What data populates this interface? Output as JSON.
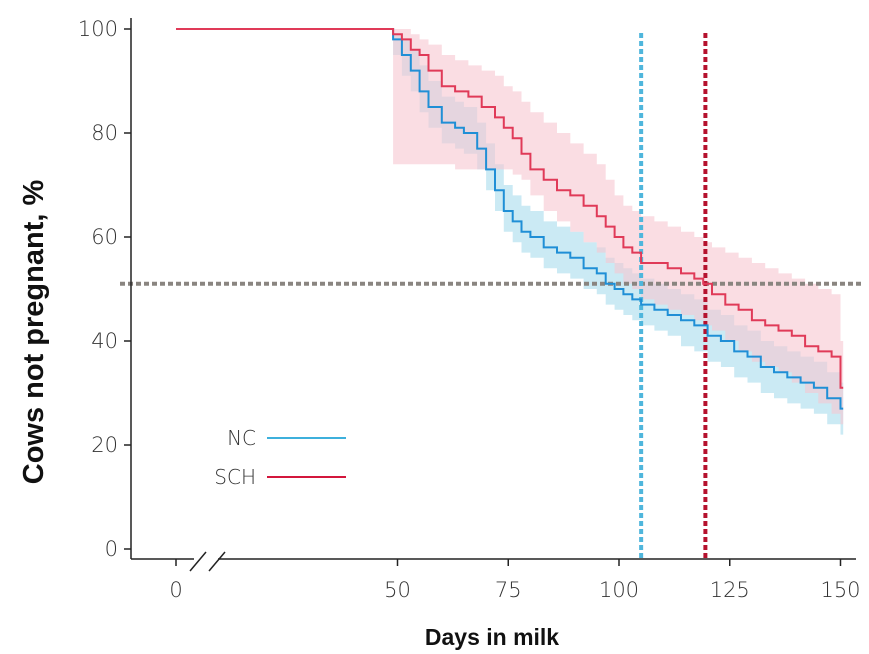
{
  "chart_data": {
    "type": "line",
    "title": "",
    "xlabel": "Days in milk",
    "ylabel": "Cows not pregnant, %",
    "xlim": [
      0,
      152
    ],
    "ylim": [
      0,
      100
    ],
    "x_axis_break": true,
    "x_ticks": [
      {
        "value": 0,
        "label": "0"
      },
      {
        "value": 50,
        "label": "50"
      },
      {
        "value": 75,
        "label": "75"
      },
      {
        "value": 100,
        "label": "100"
      },
      {
        "value": 125,
        "label": "125"
      },
      {
        "value": 150,
        "label": "150"
      }
    ],
    "y_ticks": [
      {
        "value": 0,
        "label": "0"
      },
      {
        "value": 20,
        "label": "20"
      },
      {
        "value": 40,
        "label": "40"
      },
      {
        "value": 60,
        "label": "60"
      },
      {
        "value": 80,
        "label": "80"
      },
      {
        "value": 100,
        "label": "100"
      }
    ],
    "reference_lines": [
      {
        "orientation": "horizontal",
        "value": 51,
        "color": "#8a8580",
        "style": "dotted"
      },
      {
        "orientation": "vertical",
        "value": 105,
        "color": "#4fb6dc",
        "style": "dotted"
      },
      {
        "orientation": "vertical",
        "value": 119.5,
        "color": "#b5122e",
        "style": "dotted"
      }
    ],
    "legend": {
      "position": "lower-left",
      "entries": [
        {
          "label": "NC",
          "color": "#3db0dc"
        },
        {
          "label": "SCH",
          "color": "#d3163c"
        }
      ]
    },
    "series": [
      {
        "name": "NC",
        "line_color": "#1f8fd6",
        "band_color": "#a9dcec",
        "step": true,
        "x": [
          0,
          47,
          49,
          51,
          53,
          55,
          57,
          60,
          63,
          65,
          68,
          70,
          72,
          74,
          76,
          78,
          80,
          83,
          86,
          89,
          92,
          95,
          97,
          99,
          101,
          103,
          105,
          108,
          111,
          114,
          117,
          120,
          123,
          126,
          129,
          132,
          135,
          138,
          141,
          144,
          147,
          150
        ],
        "y": [
          100,
          100,
          98,
          95,
          92,
          88,
          85,
          82,
          81,
          80,
          77,
          73,
          69,
          65,
          63,
          61,
          60,
          58,
          57,
          56,
          54,
          53,
          51,
          50,
          49,
          48,
          47,
          46,
          45,
          44,
          43,
          41,
          40,
          38,
          37,
          35,
          34,
          33,
          32,
          31,
          29,
          27
        ],
        "lower": [
          100,
          100,
          95,
          91,
          88,
          84,
          81,
          78,
          77,
          76,
          73,
          69,
          65,
          61,
          59,
          57,
          56,
          54,
          53,
          52,
          50,
          49,
          47,
          46,
          45,
          44,
          43,
          42,
          41,
          39,
          38,
          36,
          35,
          33,
          32,
          30,
          29,
          28,
          27,
          26,
          24,
          22
        ],
        "upper": [
          100,
          100,
          99,
          98,
          96,
          93,
          90,
          87,
          86,
          85,
          82,
          78,
          74,
          70,
          68,
          66,
          65,
          63,
          62,
          61,
          59,
          58,
          56,
          55,
          54,
          53,
          52,
          51,
          50,
          49,
          48,
          46,
          45,
          43,
          42,
          40,
          39,
          38,
          37,
          36,
          34,
          32
        ]
      },
      {
        "name": "SCH",
        "line_color": "#e03a58",
        "band_color": "#f7c6d1",
        "step": true,
        "x": [
          0,
          47,
          49,
          51,
          53,
          55,
          57,
          60,
          63,
          66,
          69,
          72,
          74,
          76,
          78,
          80,
          83,
          86,
          89,
          92,
          95,
          97,
          99,
          101,
          103,
          105,
          108,
          111,
          114,
          117,
          119,
          121,
          124,
          127,
          130,
          133,
          136,
          139,
          142,
          145,
          148,
          150
        ],
        "y": [
          100,
          100,
          99,
          98,
          96,
          95,
          92,
          89,
          88,
          87,
          85,
          83,
          81,
          79,
          76,
          73,
          71,
          69,
          68,
          66,
          64,
          62,
          60,
          58,
          57,
          55,
          55,
          54,
          53,
          52,
          51,
          49,
          47,
          46,
          44,
          43,
          42,
          41,
          39,
          38,
          37,
          31
        ],
        "lower": [
          100,
          100,
          74,
          74,
          74,
          74,
          74,
          74,
          73,
          73,
          73,
          73,
          73,
          72,
          71,
          68,
          65,
          63,
          61,
          59,
          57,
          55,
          53,
          51,
          50,
          48,
          47,
          46,
          45,
          44,
          43,
          42,
          40,
          38,
          36,
          35,
          34,
          32,
          30,
          28,
          26,
          24
        ],
        "upper": [
          100,
          100,
          100,
          100,
          99,
          98,
          97,
          95,
          94,
          93,
          92,
          91,
          89,
          88,
          86,
          84,
          82,
          80,
          78,
          76,
          74,
          71,
          68,
          66,
          65,
          64,
          63,
          62,
          61,
          60,
          59,
          58,
          57,
          56,
          55,
          54,
          53,
          52,
          51,
          50,
          49,
          40
        ]
      }
    ]
  }
}
